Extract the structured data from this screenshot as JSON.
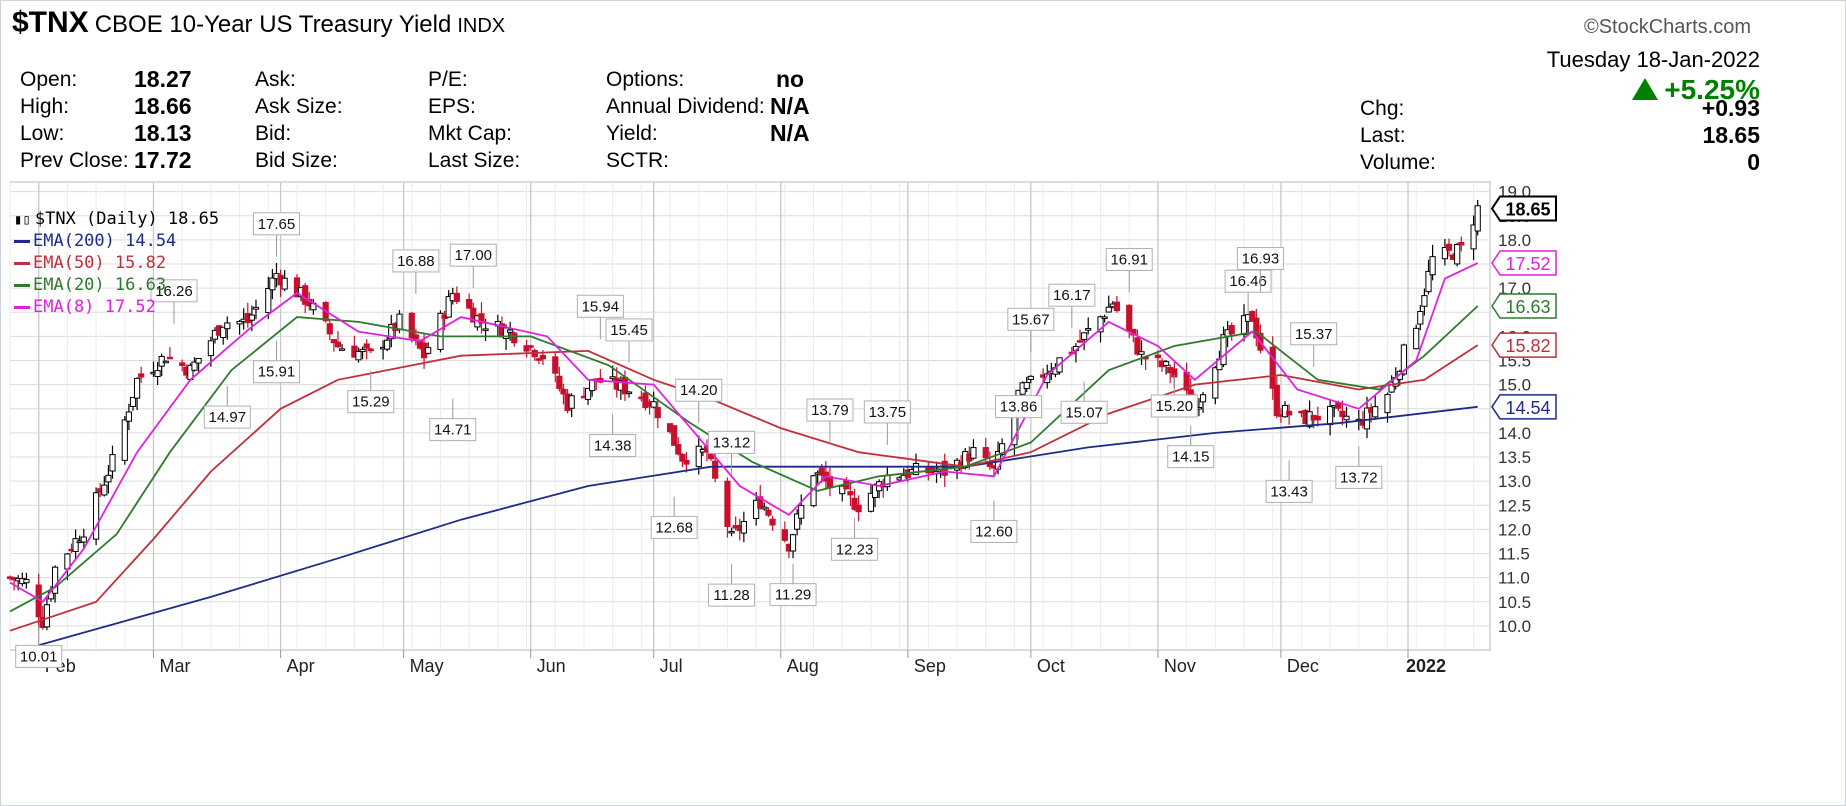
{
  "header": {
    "symbol": "$TNX",
    "name": "CBOE 10-Year US Treasury Yield",
    "exchange": "INDX",
    "brand": "©StockCharts.com",
    "date": "Tuesday  18-Jan-2022",
    "pct_change": "+5.25%"
  },
  "quote": {
    "open_label": "Open:",
    "open": "18.27",
    "high_label": "High:",
    "high": "18.66",
    "low_label": "Low:",
    "low": "18.13",
    "prev_label": "Prev Close:",
    "prev": "17.72",
    "ask_label": "Ask:",
    "asksize_label": "Ask Size:",
    "bid_label": "Bid:",
    "bidsize_label": "Bid Size:",
    "pe_label": "P/E:",
    "eps_label": "EPS:",
    "mktcap_label": "Mkt Cap:",
    "lastsize_label": "Last Size:",
    "options_label": "Options:",
    "options": "no",
    "dividend_label": "Annual Dividend:",
    "dividend": "N/A",
    "yield_label": "Yield:",
    "yield": "N/A",
    "sctr_label": "SCTR:",
    "chg_label": "Chg:",
    "chg": "+0.93",
    "last_label": "Last:",
    "last": "18.65",
    "volume_label": "Volume:",
    "volume": "0"
  },
  "legend": {
    "main": "$TNX (Daily) 18.65",
    "ema200": "EMA(200) 14.54",
    "ema50": "EMA(50) 15.82",
    "ema20": "EMA(20) 16.63",
    "ema8": "EMA(8) 17.52"
  },
  "colors": {
    "up": "#000000",
    "down": "#c8102e",
    "ema200": "#1f2a8a",
    "ema50": "#c0303a",
    "ema20": "#2f7a2f",
    "ema8": "#e020e0",
    "grid": "#dcdcdc",
    "pct": "#008000"
  },
  "chart_data": {
    "type": "candlestick",
    "ylim": [
      9.5,
      19.2
    ],
    "yticks": [
      10.0,
      10.5,
      11.0,
      11.5,
      12.0,
      12.5,
      13.0,
      13.5,
      14.0,
      14.5,
      15.0,
      15.5,
      16.0,
      16.5,
      17.0,
      17.5,
      18.0,
      18.5,
      19.0
    ],
    "ytick_labels": [
      "10.0",
      "10.5",
      "11.0",
      "11.5",
      "12.0",
      "12.5",
      "13.0",
      "13.5",
      "14.0",
      "14.5",
      "15.0",
      "15.5",
      "16.0",
      "16.5",
      "17.0",
      "17.5",
      "18.0",
      "18.5",
      "19.0"
    ],
    "x_range": [
      "2021-01-25",
      "2022-01-21"
    ],
    "months": [
      {
        "label": "Feb",
        "date": "2021-02-01"
      },
      {
        "label": "Mar",
        "date": "2021-03-01"
      },
      {
        "label": "Apr",
        "date": "2021-04-01"
      },
      {
        "label": "May",
        "date": "2021-05-01"
      },
      {
        "label": "Jun",
        "date": "2021-06-01"
      },
      {
        "label": "Jul",
        "date": "2021-07-01"
      },
      {
        "label": "Aug",
        "date": "2021-08-01"
      },
      {
        "label": "Sep",
        "date": "2021-09-01"
      },
      {
        "label": "Oct",
        "date": "2021-10-01"
      },
      {
        "label": "Nov",
        "date": "2021-11-01"
      },
      {
        "label": "Dec",
        "date": "2021-12-01"
      },
      {
        "label": "2022",
        "date": "2022-01-01"
      }
    ],
    "path": [
      [
        "2021-01-25",
        11.0
      ],
      [
        "2021-01-29",
        10.9
      ],
      [
        "2021-02-02",
        10.1
      ],
      [
        "2021-02-05",
        11.2
      ],
      [
        "2021-02-12",
        12.0
      ],
      [
        "2021-02-19",
        13.4
      ],
      [
        "2021-02-25",
        15.1
      ],
      [
        "2021-03-04",
        15.6
      ],
      [
        "2021-03-10",
        15.3
      ],
      [
        "2021-03-18",
        16.3
      ],
      [
        "2021-03-24",
        16.3
      ],
      [
        "2021-03-31",
        17.3
      ],
      [
        "2021-04-08",
        16.7
      ],
      [
        "2021-04-15",
        15.8
      ],
      [
        "2021-04-23",
        15.6
      ],
      [
        "2021-04-30",
        16.3
      ],
      [
        "2021-05-06",
        15.6
      ],
      [
        "2021-05-13",
        16.9
      ],
      [
        "2021-05-20",
        16.3
      ],
      [
        "2021-05-27",
        16.1
      ],
      [
        "2021-06-04",
        15.6
      ],
      [
        "2021-06-10",
        14.6
      ],
      [
        "2021-06-17",
        15.1
      ],
      [
        "2021-06-25",
        14.9
      ],
      [
        "2021-07-01",
        14.6
      ],
      [
        "2021-07-08",
        13.5
      ],
      [
        "2021-07-14",
        13.6
      ],
      [
        "2021-07-20",
        11.8
      ],
      [
        "2021-07-27",
        12.6
      ],
      [
        "2021-08-03",
        11.7
      ],
      [
        "2021-08-09",
        13.2
      ],
      [
        "2021-08-13",
        12.9
      ],
      [
        "2021-08-20",
        12.5
      ],
      [
        "2021-08-27",
        13.1
      ],
      [
        "2021-09-03",
        13.2
      ],
      [
        "2021-09-10",
        13.2
      ],
      [
        "2021-09-17",
        13.6
      ],
      [
        "2021-09-22",
        13.2
      ],
      [
        "2021-09-28",
        14.8
      ],
      [
        "2021-10-05",
        15.3
      ],
      [
        "2021-10-12",
        15.8
      ],
      [
        "2021-10-21",
        16.7
      ],
      [
        "2021-10-28",
        15.6
      ],
      [
        "2021-11-04",
        15.3
      ],
      [
        "2021-11-10",
        14.5
      ],
      [
        "2021-11-17",
        15.9
      ],
      [
        "2021-11-24",
        16.4
      ],
      [
        "2021-11-30",
        14.5
      ],
      [
        "2021-12-06",
        14.3
      ],
      [
        "2021-12-14",
        14.4
      ],
      [
        "2021-12-20",
        14.2
      ],
      [
        "2021-12-27",
        14.8
      ],
      [
        "2022-01-03",
        16.3
      ],
      [
        "2022-01-07",
        17.6
      ],
      [
        "2022-01-14",
        17.8
      ],
      [
        "2022-01-18",
        18.65
      ]
    ],
    "ema": [
      {
        "name": "EMA(200)",
        "points": [
          [
            "2021-02-01",
            9.6
          ],
          [
            "2021-03-15",
            10.6
          ],
          [
            "2021-04-15",
            11.4
          ],
          [
            "2021-05-15",
            12.2
          ],
          [
            "2021-06-15",
            12.9
          ],
          [
            "2021-07-15",
            13.3
          ],
          [
            "2021-08-15",
            13.3
          ],
          [
            "2021-09-15",
            13.3
          ],
          [
            "2021-10-15",
            13.7
          ],
          [
            "2021-11-15",
            14.0
          ],
          [
            "2021-12-15",
            14.2
          ],
          [
            "2022-01-18",
            14.54
          ]
        ]
      },
      {
        "name": "EMA(50)",
        "points": [
          [
            "2021-01-25",
            9.9
          ],
          [
            "2021-02-15",
            10.5
          ],
          [
            "2021-03-01",
            11.8
          ],
          [
            "2021-03-15",
            13.2
          ],
          [
            "2021-04-01",
            14.5
          ],
          [
            "2021-04-15",
            15.1
          ],
          [
            "2021-05-15",
            15.6
          ],
          [
            "2021-06-15",
            15.7
          ],
          [
            "2021-07-01",
            15.1
          ],
          [
            "2021-07-15",
            14.7
          ],
          [
            "2021-08-01",
            14.1
          ],
          [
            "2021-08-20",
            13.6
          ],
          [
            "2021-09-15",
            13.3
          ],
          [
            "2021-10-01",
            13.6
          ],
          [
            "2021-10-20",
            14.4
          ],
          [
            "2021-11-10",
            15.0
          ],
          [
            "2021-12-01",
            15.2
          ],
          [
            "2021-12-20",
            14.9
          ],
          [
            "2022-01-05",
            15.1
          ],
          [
            "2022-01-18",
            15.82
          ]
        ]
      },
      {
        "name": "EMA(20)",
        "points": [
          [
            "2021-01-25",
            10.3
          ],
          [
            "2021-02-05",
            10.8
          ],
          [
            "2021-02-20",
            11.9
          ],
          [
            "2021-03-05",
            13.6
          ],
          [
            "2021-03-20",
            15.3
          ],
          [
            "2021-04-05",
            16.4
          ],
          [
            "2021-04-20",
            16.3
          ],
          [
            "2021-05-10",
            16.0
          ],
          [
            "2021-06-01",
            16.0
          ],
          [
            "2021-06-20",
            15.4
          ],
          [
            "2021-07-10",
            14.2
          ],
          [
            "2021-07-25",
            13.4
          ],
          [
            "2021-08-10",
            12.8
          ],
          [
            "2021-08-25",
            13.1
          ],
          [
            "2021-09-15",
            13.3
          ],
          [
            "2021-10-01",
            13.8
          ],
          [
            "2021-10-20",
            15.3
          ],
          [
            "2021-11-05",
            15.8
          ],
          [
            "2021-11-25",
            16.1
          ],
          [
            "2021-12-10",
            15.1
          ],
          [
            "2021-12-25",
            14.9
          ],
          [
            "2022-01-05",
            15.6
          ],
          [
            "2022-01-18",
            16.63
          ]
        ]
      },
      {
        "name": "EMA(8)",
        "points": [
          [
            "2021-01-25",
            10.9
          ],
          [
            "2021-02-02",
            10.5
          ],
          [
            "2021-02-12",
            11.6
          ],
          [
            "2021-02-25",
            13.6
          ],
          [
            "2021-03-10",
            15.1
          ],
          [
            "2021-03-25",
            16.2
          ],
          [
            "2021-04-05",
            16.9
          ],
          [
            "2021-04-20",
            16.1
          ],
          [
            "2021-05-05",
            15.9
          ],
          [
            "2021-05-15",
            16.4
          ],
          [
            "2021-06-05",
            16.0
          ],
          [
            "2021-06-15",
            15.1
          ],
          [
            "2021-07-01",
            15.0
          ],
          [
            "2021-07-12",
            13.9
          ],
          [
            "2021-07-22",
            12.9
          ],
          [
            "2021-08-03",
            12.3
          ],
          [
            "2021-08-12",
            13.1
          ],
          [
            "2021-08-25",
            12.9
          ],
          [
            "2021-09-10",
            13.2
          ],
          [
            "2021-09-22",
            13.1
          ],
          [
            "2021-10-05",
            15.2
          ],
          [
            "2021-10-20",
            16.3
          ],
          [
            "2021-11-01",
            15.8
          ],
          [
            "2021-11-10",
            15.1
          ],
          [
            "2021-11-24",
            16.1
          ],
          [
            "2021-12-05",
            14.9
          ],
          [
            "2021-12-20",
            14.5
          ],
          [
            "2022-01-03",
            15.5
          ],
          [
            "2022-01-10",
            17.2
          ],
          [
            "2022-01-18",
            17.52
          ]
        ]
      }
    ],
    "annotations": [
      {
        "date": "2021-02-01",
        "value": 10.01,
        "label": "10.01",
        "pos": "below"
      },
      {
        "date": "2021-03-06",
        "value": 16.26,
        "label": "16.26",
        "pos": "above"
      },
      {
        "date": "2021-03-19",
        "value": 14.97,
        "label": "14.97",
        "pos": "below"
      },
      {
        "date": "2021-03-31",
        "value": 15.91,
        "label": "15.91",
        "pos": "below"
      },
      {
        "date": "2021-03-31",
        "value": 17.65,
        "label": "17.65",
        "pos": "above"
      },
      {
        "date": "2021-04-23",
        "value": 15.29,
        "label": "15.29",
        "pos": "below"
      },
      {
        "date": "2021-05-04",
        "value": 16.88,
        "label": "16.88",
        "pos": "above"
      },
      {
        "date": "2021-05-13",
        "value": 14.71,
        "label": "14.71",
        "pos": "below"
      },
      {
        "date": "2021-05-18",
        "value": 17.0,
        "label": "17.00",
        "pos": "above"
      },
      {
        "date": "2021-06-18",
        "value": 15.94,
        "label": "15.94",
        "pos": "above"
      },
      {
        "date": "2021-06-25",
        "value": 15.45,
        "label": "15.45",
        "pos": "above"
      },
      {
        "date": "2021-06-21",
        "value": 14.38,
        "label": "14.38",
        "pos": "below"
      },
      {
        "date": "2021-07-12",
        "value": 14.2,
        "label": "14.20",
        "pos": "above"
      },
      {
        "date": "2021-07-20",
        "value": 13.12,
        "label": "13.12",
        "pos": "above"
      },
      {
        "date": "2021-07-06",
        "value": 12.68,
        "label": "12.68",
        "pos": "below"
      },
      {
        "date": "2021-07-20",
        "value": 11.28,
        "label": "11.28",
        "pos": "below"
      },
      {
        "date": "2021-08-04",
        "value": 11.29,
        "label": "11.29",
        "pos": "below"
      },
      {
        "date": "2021-08-13",
        "value": 13.79,
        "label": "13.79",
        "pos": "above"
      },
      {
        "date": "2021-08-19",
        "value": 12.23,
        "label": "12.23",
        "pos": "below"
      },
      {
        "date": "2021-08-27",
        "value": 13.75,
        "label": "13.75",
        "pos": "above"
      },
      {
        "date": "2021-09-22",
        "value": 12.6,
        "label": "12.60",
        "pos": "below"
      },
      {
        "date": "2021-09-28",
        "value": 13.86,
        "label": "13.86",
        "pos": "above"
      },
      {
        "date": "2021-10-01",
        "value": 15.67,
        "label": "15.67",
        "pos": "above"
      },
      {
        "date": "2021-10-11",
        "value": 16.17,
        "label": "16.17",
        "pos": "above"
      },
      {
        "date": "2021-10-14",
        "value": 15.07,
        "label": "15.07",
        "pos": "below"
      },
      {
        "date": "2021-10-25",
        "value": 16.91,
        "label": "16.91",
        "pos": "above"
      },
      {
        "date": "2021-11-05",
        "value": 15.2,
        "label": "15.20",
        "pos": "below"
      },
      {
        "date": "2021-11-09",
        "value": 14.15,
        "label": "14.15",
        "pos": "below"
      },
      {
        "date": "2021-11-23",
        "value": 16.46,
        "label": "16.46",
        "pos": "above"
      },
      {
        "date": "2021-11-26",
        "value": 16.93,
        "label": "16.93",
        "pos": "above"
      },
      {
        "date": "2021-12-03",
        "value": 13.43,
        "label": "13.43",
        "pos": "below"
      },
      {
        "date": "2021-12-09",
        "value": 15.37,
        "label": "15.37",
        "pos": "above"
      },
      {
        "date": "2021-12-20",
        "value": 13.72,
        "label": "13.72",
        "pos": "below"
      }
    ],
    "right_tags": [
      {
        "value": 18.65,
        "label": "18.65",
        "series": "price"
      },
      {
        "value": 17.52,
        "label": "17.52",
        "series": "EMA(8)"
      },
      {
        "value": 16.63,
        "label": "16.63",
        "series": "EMA(20)"
      },
      {
        "value": 15.82,
        "label": "15.82",
        "series": "EMA(50)"
      },
      {
        "value": 14.54,
        "label": "14.54",
        "series": "EMA(200)"
      }
    ]
  }
}
